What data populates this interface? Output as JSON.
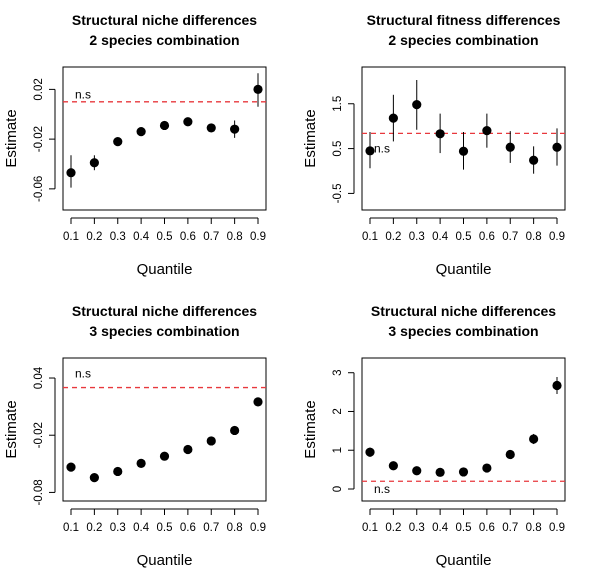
{
  "colors": {
    "reference_line": "#e8383d",
    "points": "#000000",
    "axes": "#000000"
  },
  "chart_data": [
    {
      "type": "scatter",
      "title": [
        "Structural niche differences",
        "2 species combination"
      ],
      "xlabel": "Quantile",
      "ylabel": "Estimate",
      "x": [
        0.1,
        0.2,
        0.3,
        0.4,
        0.5,
        0.6,
        0.7,
        0.8,
        0.9
      ],
      "x_ticks": [
        "0.1",
        "0.2",
        "0.3",
        "0.4",
        "0.5",
        "0.6",
        "0.7",
        "0.8",
        "0.9"
      ],
      "y": [
        -0.047,
        -0.039,
        -0.022,
        -0.014,
        -0.009,
        -0.006,
        -0.011,
        -0.012,
        0.02
      ],
      "y_lower": [
        -0.059,
        -0.045,
        -0.024,
        -0.016,
        -0.011,
        -0.008,
        -0.013,
        -0.019,
        0.006
      ],
      "y_upper": [
        -0.033,
        -0.033,
        -0.02,
        -0.012,
        -0.007,
        -0.004,
        -0.009,
        -0.005,
        0.033
      ],
      "y_ticks": [
        "-0.06",
        "-0.02",
        "0.02"
      ],
      "y_tick_values": [
        -0.06,
        -0.02,
        0.02
      ],
      "ylim": [
        -0.077,
        0.038
      ],
      "reference_line": 0.01,
      "annotation": "n.s",
      "annotation_anchor": [
        0.1,
        0.016
      ]
    },
    {
      "type": "scatter",
      "title": [
        "Structural fitness differences",
        "2 species combination"
      ],
      "xlabel": "Quantile",
      "ylabel": "Estimate",
      "x": [
        0.1,
        0.2,
        0.3,
        0.4,
        0.5,
        0.6,
        0.7,
        0.8,
        0.9
      ],
      "x_ticks": [
        "0.1",
        "0.2",
        "0.3",
        "0.4",
        "0.5",
        "0.6",
        "0.7",
        "0.8",
        "0.9"
      ],
      "y": [
        0.45,
        1.18,
        1.48,
        0.83,
        0.44,
        0.9,
        0.53,
        0.24,
        0.53
      ],
      "y_lower": [
        0.06,
        0.66,
        0.92,
        0.4,
        0.03,
        0.52,
        0.18,
        -0.06,
        0.12
      ],
      "y_upper": [
        0.87,
        1.7,
        2.03,
        1.28,
        0.87,
        1.28,
        0.89,
        0.55,
        0.95
      ],
      "y_ticks": [
        "-0.5",
        "0.5",
        "1.5"
      ],
      "y_tick_values": [
        -0.5,
        0.5,
        1.5
      ],
      "ylim": [
        -0.87,
        2.32
      ],
      "reference_line": 0.84,
      "annotation": "n.s",
      "annotation_anchor": [
        0.1,
        0.5
      ]
    },
    {
      "type": "scatter",
      "title": [
        "Structural niche differences",
        "3 species combination"
      ],
      "xlabel": "Quantile",
      "ylabel": "Estimate",
      "x": [
        0.1,
        0.2,
        0.3,
        0.4,
        0.5,
        0.6,
        0.7,
        0.8,
        0.9
      ],
      "x_ticks": [
        "0.1",
        "0.2",
        "0.3",
        "0.4",
        "0.5",
        "0.6",
        "0.7",
        "0.8",
        "0.9"
      ],
      "y": [
        -0.0535,
        -0.0645,
        -0.058,
        -0.0495,
        -0.042,
        -0.035,
        -0.026,
        -0.015,
        0.015
      ],
      "y_lower": [
        -0.0555,
        -0.0665,
        -0.06,
        -0.0515,
        -0.044,
        -0.037,
        -0.028,
        -0.017,
        0.0105
      ],
      "y_upper": [
        -0.0515,
        -0.0625,
        -0.056,
        -0.0475,
        -0.04,
        -0.033,
        -0.024,
        -0.013,
        0.0195
      ],
      "y_ticks": [
        "-0.08",
        "-0.02",
        "0.04"
      ],
      "y_tick_values": [
        -0.08,
        -0.02,
        0.04
      ],
      "ylim": [
        -0.089,
        0.061
      ],
      "reference_line": 0.03,
      "annotation": "n.s",
      "annotation_anchor": [
        0.1,
        0.045
      ]
    },
    {
      "type": "scatter",
      "title": [
        "Structural niche differences",
        "3 species combination"
      ],
      "xlabel": "Quantile",
      "ylabel": "Estimate",
      "x": [
        0.1,
        0.2,
        0.3,
        0.4,
        0.5,
        0.6,
        0.7,
        0.8,
        0.9
      ],
      "x_ticks": [
        "0.1",
        "0.2",
        "0.3",
        "0.4",
        "0.5",
        "0.6",
        "0.7",
        "0.8",
        "0.9"
      ],
      "y": [
        0.95,
        0.6,
        0.47,
        0.43,
        0.44,
        0.54,
        0.89,
        1.29,
        2.67
      ],
      "y_lower": [
        0.83,
        0.5,
        0.4,
        0.37,
        0.38,
        0.47,
        0.8,
        1.16,
        2.45
      ],
      "y_upper": [
        1.07,
        0.7,
        0.54,
        0.49,
        0.5,
        0.61,
        0.98,
        1.42,
        2.89
      ],
      "y_ticks": [
        "0",
        "1",
        "2",
        "3"
      ],
      "y_tick_values": [
        0,
        1,
        2,
        3
      ],
      "ylim": [
        -0.31,
        3.38
      ],
      "reference_line": 0.2,
      "annotation": "n.s",
      "annotation_anchor": [
        0.1,
        0.0
      ]
    }
  ]
}
